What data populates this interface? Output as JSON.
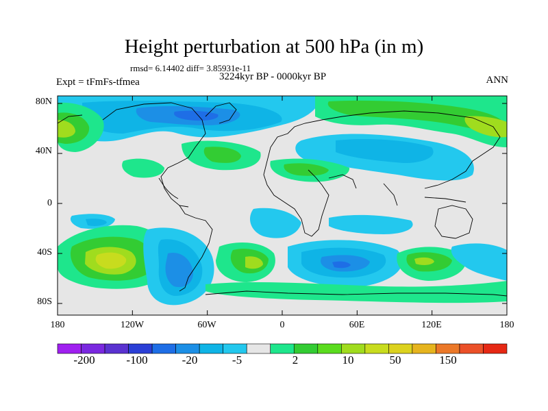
{
  "title": "Height perturbation at 500 hPa (in m)",
  "stats": "rmsd= 6.14402 diff= 3.85931e-11",
  "period": "3224kyr BP - 0000kyr BP",
  "experiment": "Expt = tFmFs-tfmea",
  "season": "ANN",
  "lat_ticks": [
    "80N",
    "40N",
    "0",
    "40S",
    "80S"
  ],
  "lon_ticks": [
    "180",
    "120W",
    "60W",
    "0",
    "60E",
    "120E",
    "180"
  ],
  "colorbar": {
    "colors": [
      "#a020f0",
      "#7a28e0",
      "#5a32d0",
      "#2b3fd6",
      "#1e6ee6",
      "#1c8fe6",
      "#0fb4e6",
      "#23c8ee",
      "#e6e6e6",
      "#1ee68c",
      "#33cc33",
      "#5adc1e",
      "#a0dc1e",
      "#c8dc1e",
      "#dcd21e",
      "#e6b41e",
      "#eb7828",
      "#eb5028",
      "#e62814"
    ],
    "labels": [
      "-200",
      "-100",
      "-20",
      "-5",
      "2",
      "10",
      "50",
      "150"
    ]
  },
  "fields": {
    "background": "#e6e6e6",
    "negative_colors": [
      "#23c8ee",
      "#0fb4e6",
      "#1c8fe6",
      "#1e6ee6"
    ],
    "positive_colors": [
      "#1ee68c",
      "#33cc33",
      "#a0dc1e",
      "#c8dc1e"
    ]
  }
}
